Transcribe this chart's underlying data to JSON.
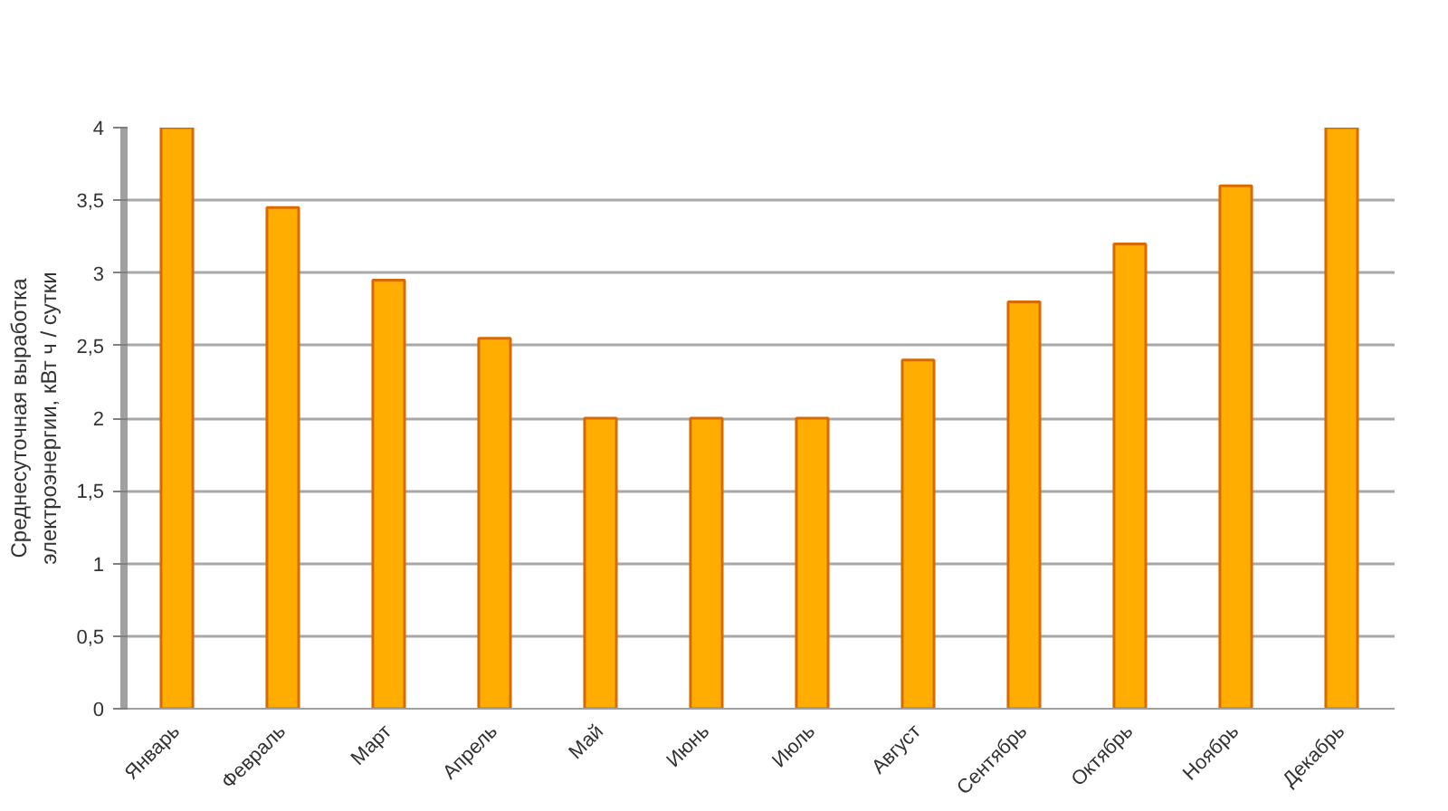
{
  "chart_data": {
    "type": "bar",
    "ylabel": "Среднесуточная выработка электроэнергии, кВт ч / сутки",
    "categories": [
      "Январь",
      "Февраль",
      "Март",
      "Апрель",
      "Май",
      "Июнь",
      "Июль",
      "Август",
      "Сентябрь",
      "Октябрь",
      "Ноябрь",
      "Декабрь"
    ],
    "values": [
      4,
      3.45,
      2.95,
      2.55,
      2,
      2,
      2,
      2.4,
      2.8,
      3.2,
      3.6,
      4
    ],
    "color": "#ffad00",
    "ylim": [
      0,
      4
    ],
    "yticks": [
      0,
      {
        "value": 0.5,
        "label": "0,5"
      },
      1,
      {
        "value": 1.5,
        "label": "1,5"
      },
      2,
      {
        "value": 2.5,
        "label": "2,5"
      },
      3,
      {
        "value": 3.5,
        "label": "3,5"
      },
      4
    ],
    "grid": "y"
  }
}
